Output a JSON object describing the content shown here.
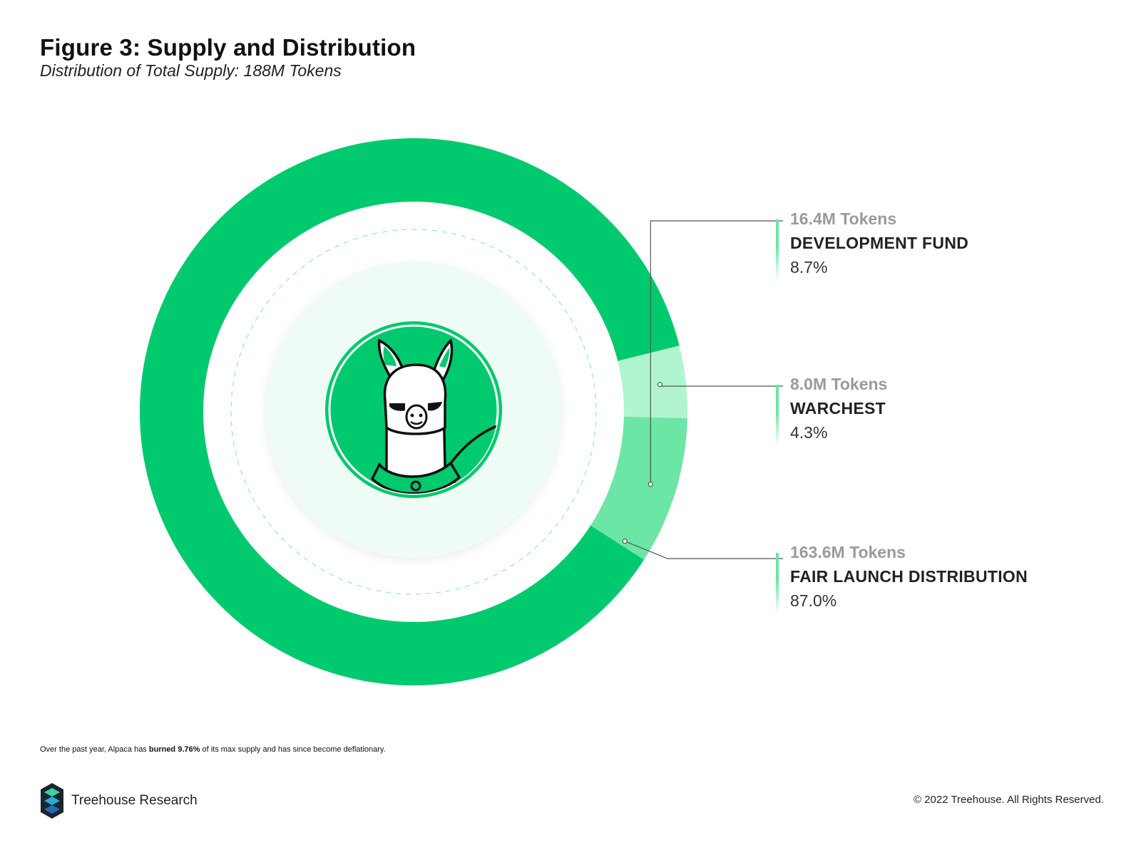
{
  "header": {
    "title": "Figure 3: Supply and Distribution",
    "subtitle": "Distribution of Total Supply: 188M Tokens"
  },
  "chart_data": {
    "type": "pie",
    "variant": "donut",
    "start_angle_deg": 14,
    "direction": "counter-clockwise",
    "segments": [
      {
        "name": "FAIR LAUNCH DISTRIBUTION",
        "tokens_label": "163.6M Tokens",
        "value": 163.6,
        "percent_label": "87.0%",
        "percent": 87.0,
        "color": "#00c96e"
      },
      {
        "name": "DEVELOPMENT FUND",
        "tokens_label": "16.4M Tokens",
        "value": 16.4,
        "percent_label": "8.7%",
        "percent": 8.7,
        "color": "#6be6a5"
      },
      {
        "name": "WARCHEST",
        "tokens_label": "8.0M Tokens",
        "value": 8.0,
        "percent_label": "4.3%",
        "percent": 4.3,
        "color": "#b0f5d0"
      }
    ]
  },
  "footnote": {
    "before": "Over the past year, Alpaca has ",
    "bold": "burned 9.76%",
    "after": " of its max supply and has since  become deflationary."
  },
  "footer": {
    "brand": "Treehouse Research",
    "copyright": "© 2022 Treehouse. All Rights Reserved."
  },
  "icons": {
    "center": "alpaca-mascot-icon",
    "brand": "treehouse-logo-icon"
  }
}
